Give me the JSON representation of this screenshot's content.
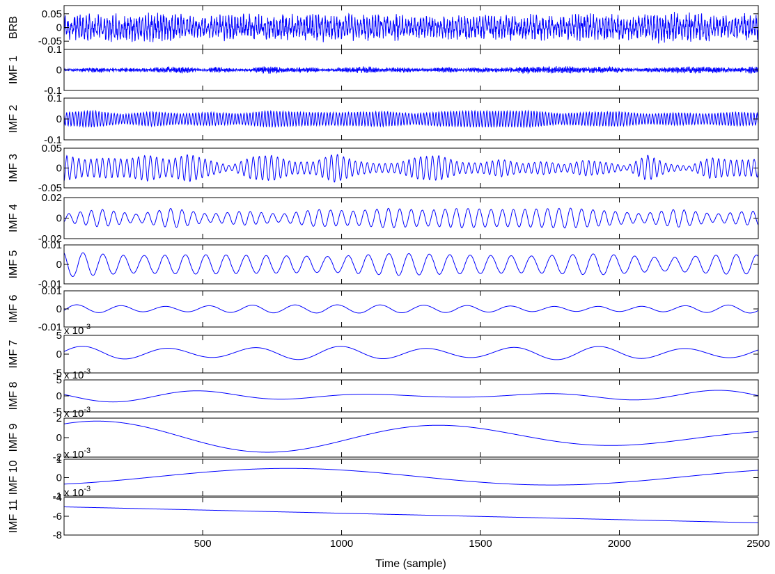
{
  "chart_data": {
    "type": "line",
    "xlabel": "Time (sample)",
    "xlim": [
      1,
      2500
    ],
    "x_ticks": [
      500,
      1000,
      1500,
      2000,
      2500
    ],
    "x_tick_labels": [
      "500",
      "1000",
      "1500",
      "2000",
      "2500"
    ],
    "line_color": "#0000ff",
    "grid": false,
    "panels": [
      {
        "id": "brb",
        "ylabel": "BRB",
        "ylim": [
          -0.08,
          0.08
        ],
        "yticks": [
          0.05,
          0,
          -0.05
        ],
        "ytick_labels": [
          "0.05",
          "0",
          "-0.05"
        ],
        "exponent": "",
        "signal": {
          "kind": "noise",
          "seed": 11,
          "amp": 0.045,
          "period": 11,
          "mod_period": 170,
          "mod_depth": 0.25
        }
      },
      {
        "id": "imf1",
        "ylabel": "IMF 1",
        "ylim": [
          -0.1,
          0.1
        ],
        "yticks": [
          0.1,
          0,
          -0.1
        ],
        "ytick_labels": [
          "0.1",
          "0",
          "-0.1"
        ],
        "exponent": "",
        "signal": {
          "kind": "noise",
          "seed": 23,
          "amp": 0.012,
          "period": 5,
          "mod_period": 110,
          "mod_depth": 0.6
        }
      },
      {
        "id": "imf2",
        "ylabel": "IMF 2",
        "ylim": [
          -0.1,
          0.1
        ],
        "yticks": [
          0.1,
          0,
          -0.1
        ],
        "ytick_labels": [
          "0.1",
          "0",
          "-0.1"
        ],
        "exponent": "",
        "signal": {
          "kind": "osc",
          "seed": 37,
          "amp": 0.033,
          "period": 11,
          "mod_period": 210,
          "mod_depth": 0.35
        }
      },
      {
        "id": "imf3",
        "ylabel": "IMF 3",
        "ylim": [
          -0.05,
          0.05
        ],
        "yticks": [
          0.05,
          0,
          -0.05
        ],
        "ytick_labels": [
          "0.05",
          "0",
          "-0.05"
        ],
        "exponent": "",
        "signal": {
          "kind": "osc",
          "seed": 41,
          "amp": 0.025,
          "period": 22,
          "mod_period": 150,
          "mod_depth": 0.85
        }
      },
      {
        "id": "imf4",
        "ylabel": "IMF 4",
        "ylim": [
          -0.02,
          0.02
        ],
        "yticks": [
          0.02,
          0,
          -0.02
        ],
        "ytick_labels": [
          "0.02",
          "0",
          "-0.02"
        ],
        "exponent": "",
        "signal": {
          "kind": "osc",
          "seed": 53,
          "amp": 0.0075,
          "period": 42,
          "mod_period": 260,
          "mod_depth": 0.55
        }
      },
      {
        "id": "imf5",
        "ylabel": "IMF 5",
        "ylim": [
          -0.01,
          0.01
        ],
        "yticks": [
          0.01,
          0,
          -0.01
        ],
        "ytick_labels": [
          "0.01",
          "0",
          "-0.01"
        ],
        "exponent": "",
        "signal": {
          "kind": "osc",
          "seed": 67,
          "amp": 0.0052,
          "period": 75,
          "mod_period": 480,
          "mod_depth": 0.45
        }
      },
      {
        "id": "imf6",
        "ylabel": "IMF 6",
        "ylim": [
          -0.01,
          0.01
        ],
        "yticks": [
          0.01,
          0,
          -0.01
        ],
        "ytick_labels": [
          "0.01",
          "0",
          "-0.01"
        ],
        "exponent": "",
        "signal": {
          "kind": "osc",
          "seed": 71,
          "amp": 0.0022,
          "period": 160,
          "mod_period": 700,
          "mod_depth": 0.5
        }
      },
      {
        "id": "imf7",
        "ylabel": "IMF 7",
        "ylim": [
          -5,
          5
        ],
        "yticks": [
          5,
          0,
          -5
        ],
        "ytick_labels": [
          "5",
          "0",
          "-5"
        ],
        "exponent": "-3",
        "signal": {
          "kind": "sine",
          "amp": 1.8,
          "period": 310,
          "offset": 0.3,
          "phase": 0.2,
          "mod_period": 900,
          "mod_depth": 0.35
        }
      },
      {
        "id": "imf8",
        "ylabel": "IMF 8",
        "ylim": [
          -5,
          5
        ],
        "yticks": [
          5,
          0,
          -5
        ],
        "ytick_labels": [
          "5",
          "0",
          "-5"
        ],
        "exponent": "-3",
        "signal": {
          "kind": "sine",
          "amp": 1.9,
          "period": 620,
          "offset": 0.0,
          "phase": 2.9,
          "mod_period": 2500,
          "mod_depth": 0.8
        }
      },
      {
        "id": "imf9",
        "ylabel": "IMF 9",
        "ylim": [
          -2,
          2
        ],
        "yticks": [
          2,
          0,
          -2
        ],
        "ytick_labels": [
          "2",
          "0",
          "-2"
        ],
        "exponent": "-3",
        "signal": {
          "kind": "sine",
          "amp": 1.65,
          "period": 1250,
          "offset": 0.05,
          "phase": 0.98,
          "mod_period": 5000,
          "mod_depth": 0.6
        }
      },
      {
        "id": "imf10",
        "ylabel": "IMF 10",
        "ylim": [
          -1,
          1
        ],
        "yticks": [
          1,
          0,
          -1
        ],
        "ytick_labels": [
          "1",
          "0",
          "-1"
        ],
        "exponent": "-3",
        "signal": {
          "kind": "sine",
          "amp": 0.45,
          "period": 1900,
          "offset": 0.05,
          "phase": -1.1,
          "mod_period": 0,
          "mod_depth": 0
        }
      },
      {
        "id": "imf11",
        "ylabel": "IMF 11",
        "ylim": [
          -8,
          -4
        ],
        "yticks": [
          -4,
          -6,
          -8
        ],
        "ytick_labels": [
          "-4",
          "-6",
          "-8"
        ],
        "exponent": "-3",
        "signal": {
          "kind": "linear",
          "start": -5.0,
          "end": -6.7
        }
      }
    ]
  }
}
